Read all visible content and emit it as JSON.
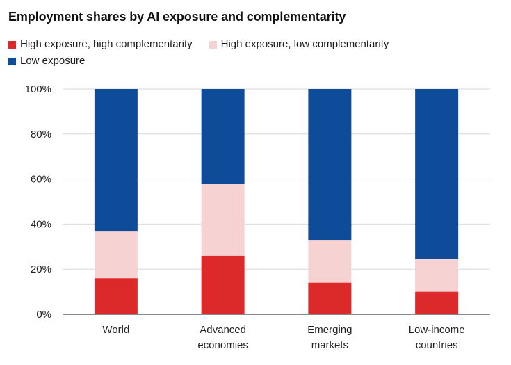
{
  "chart_data": {
    "type": "bar",
    "stacked": true,
    "title": "Employment shares by AI exposure and complementarity",
    "categories": [
      [
        "World"
      ],
      [
        "Advanced",
        "economies"
      ],
      [
        "Emerging",
        "markets"
      ],
      [
        "Low-income",
        "countries"
      ]
    ],
    "series": [
      {
        "name": "High exposure, high complementarity",
        "color": "#dc2a2a",
        "values": [
          16,
          26,
          14,
          10
        ]
      },
      {
        "name": "High exposure, low complementarity",
        "color": "#f6d2d2",
        "values": [
          21,
          32,
          19,
          14.5
        ]
      },
      {
        "name": "Low exposure",
        "color": "#0e4c9a",
        "values": [
          63,
          42,
          67,
          75.5
        ]
      }
    ],
    "ylim": [
      0,
      100
    ],
    "yticks": [
      0,
      20,
      40,
      60,
      80,
      100
    ],
    "ytick_labels": [
      "0%",
      "20%",
      "40%",
      "60%",
      "80%",
      "100%"
    ],
    "xlabel": "",
    "ylabel": "",
    "grid": true,
    "legend_position": "top-left"
  }
}
